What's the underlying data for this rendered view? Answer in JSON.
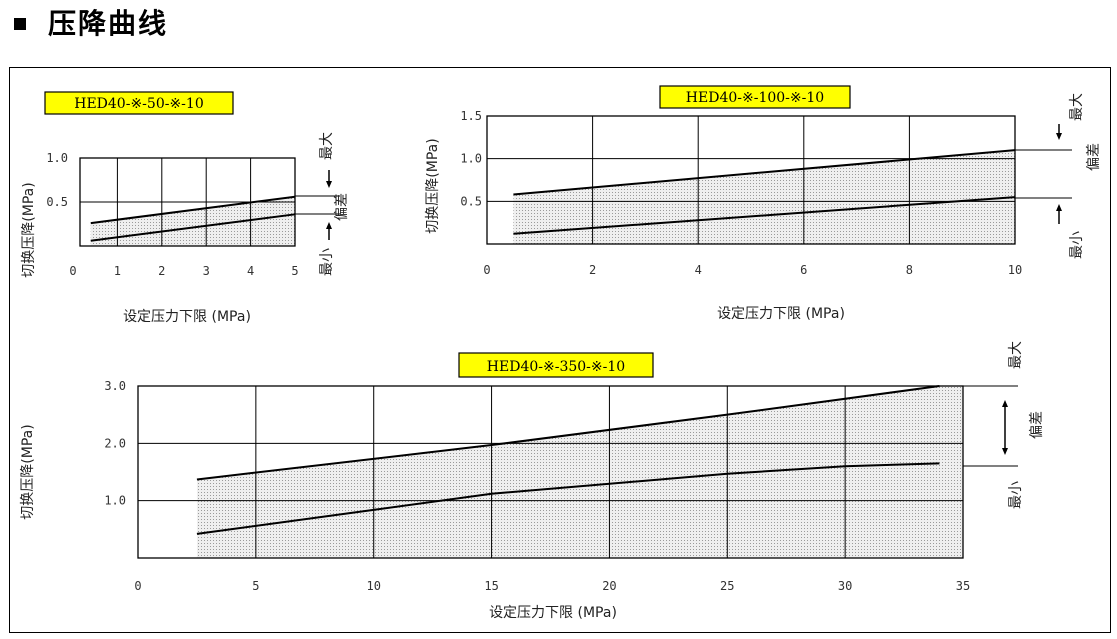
{
  "heading": "压降曲线",
  "side_labels": {
    "max": "最大",
    "deviation": "偏差",
    "min": "最小"
  },
  "chart_data": [
    {
      "type": "area",
      "model": "HED40-※-50-※-10",
      "xlabel": "设定压力下限 (MPa)",
      "ylabel": "切换压降(MPa)",
      "xlim": [
        0,
        5
      ],
      "ylim": [
        0,
        1.0
      ],
      "xticks": [
        "0",
        "1",
        "2",
        "3",
        "4",
        "5"
      ],
      "yticks": [
        "1.0",
        "0.5"
      ],
      "grid": true,
      "series": [
        {
          "name": "最大",
          "x": [
            0.4,
            5.0
          ],
          "y": [
            0.26,
            0.56
          ]
        },
        {
          "name": "最小",
          "x": [
            0.4,
            5.0
          ],
          "y": [
            0.06,
            0.36
          ]
        }
      ]
    },
    {
      "type": "area",
      "model": "HED40-※-100-※-10",
      "xlabel": "设定压力下限 (MPa)",
      "ylabel": "切换压降(MPa)",
      "xlim": [
        0,
        10
      ],
      "ylim": [
        0,
        1.5
      ],
      "xticks": [
        "0",
        "2",
        "4",
        "6",
        "8",
        "10"
      ],
      "yticks": [
        "1.5",
        "1.0",
        "0.5"
      ],
      "grid": true,
      "series": [
        {
          "name": "最大",
          "x": [
            0.5,
            10
          ],
          "y": [
            0.58,
            1.1
          ]
        },
        {
          "name": "最小",
          "x": [
            0.5,
            10
          ],
          "y": [
            0.12,
            0.55
          ]
        }
      ]
    },
    {
      "type": "area",
      "model": "HED40-※-350-※-10",
      "xlabel": "设定压力下限 (MPa)",
      "ylabel": "切换压降(MPa)",
      "xlim": [
        0,
        35
      ],
      "ylim": [
        0,
        3.0
      ],
      "xticks": [
        "0",
        "5",
        "10",
        "15",
        "20",
        "25",
        "30",
        "35"
      ],
      "yticks": [
        "3.0",
        "2.0",
        "1.0"
      ],
      "grid": true,
      "series": [
        {
          "name": "最大",
          "x": [
            2.5,
            15,
            25,
            34
          ],
          "y": [
            1.37,
            1.97,
            2.5,
            3.0
          ]
        },
        {
          "name": "最小",
          "x": [
            2.5,
            15,
            25,
            30,
            34
          ],
          "y": [
            0.42,
            1.12,
            1.47,
            1.6,
            1.65
          ]
        }
      ]
    }
  ]
}
